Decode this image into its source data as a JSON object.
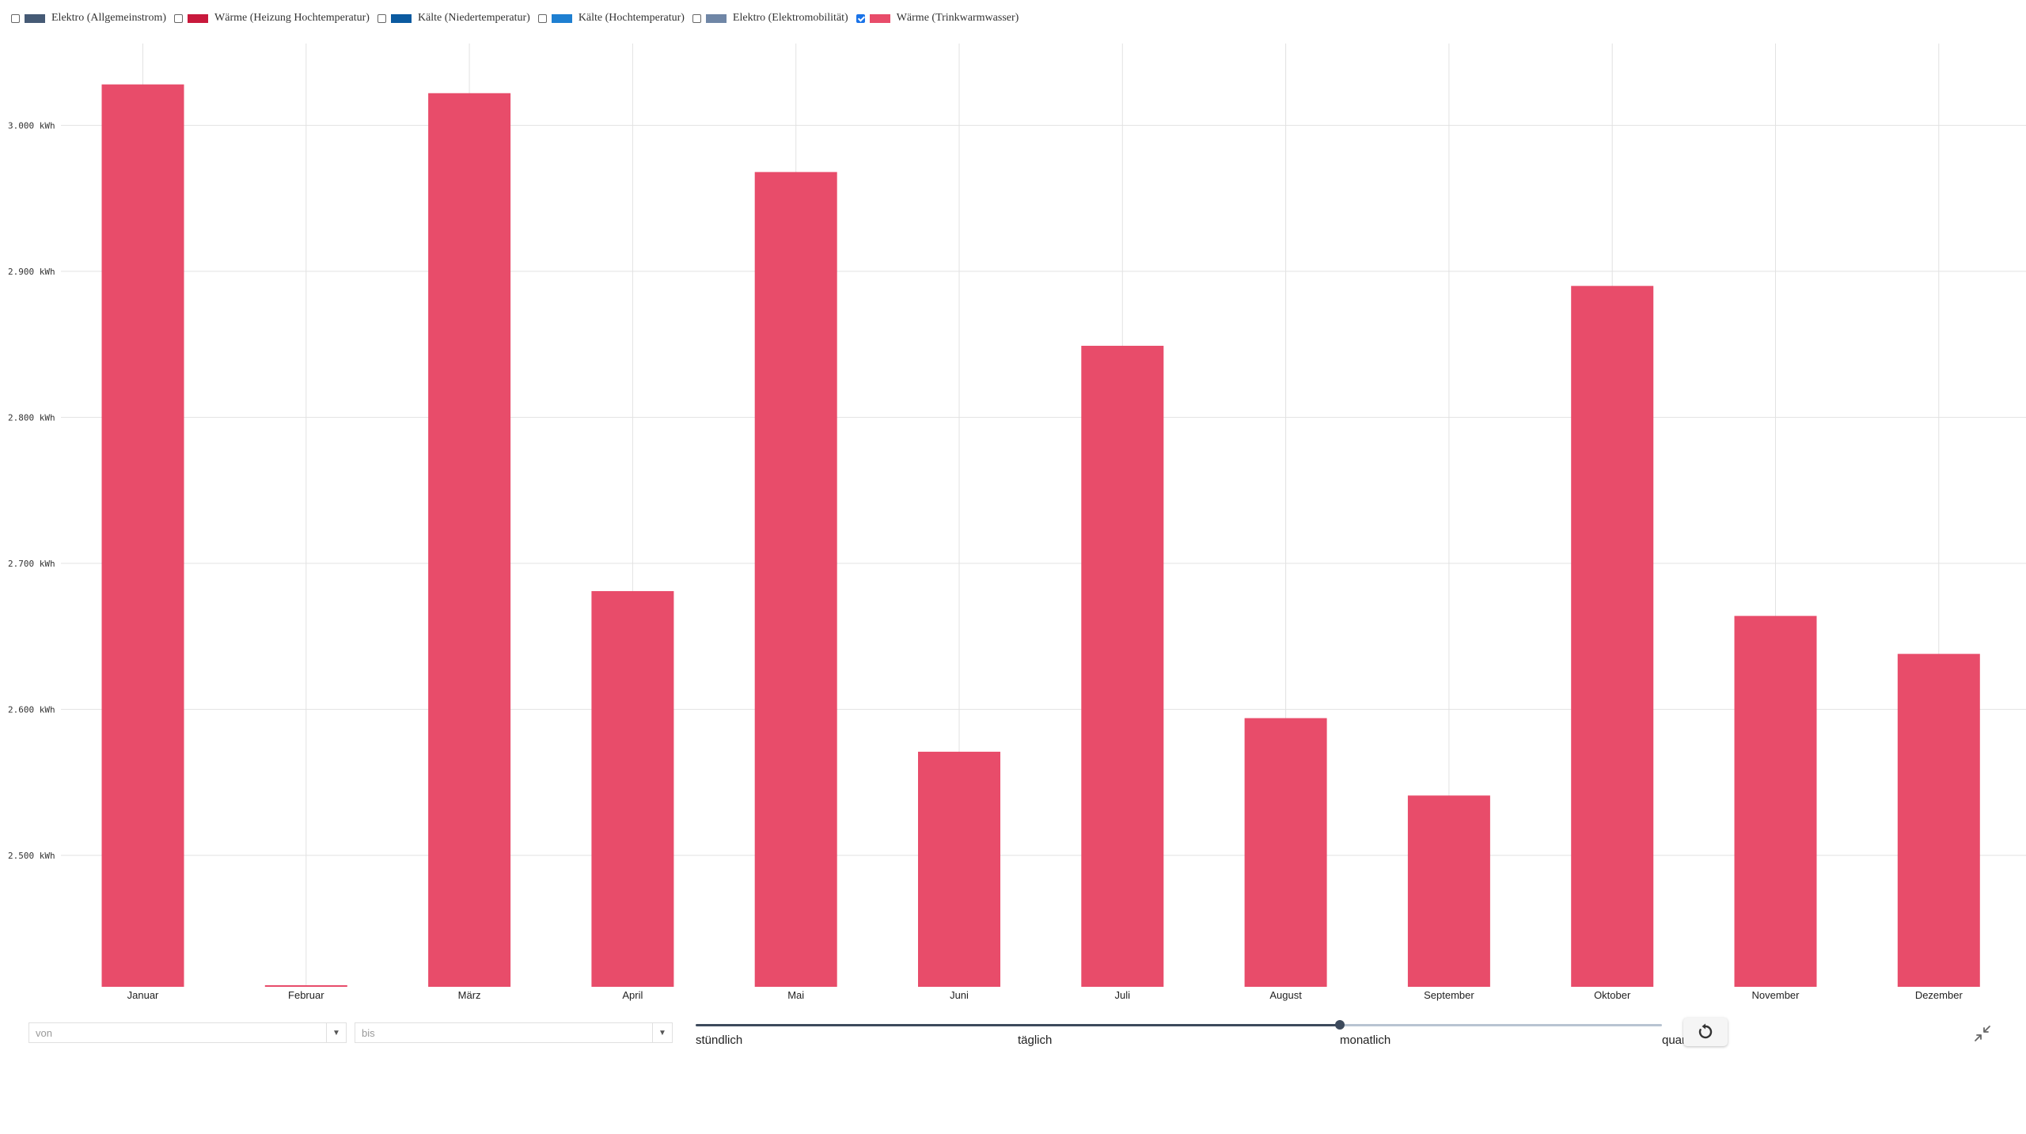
{
  "legend": [
    {
      "label": "Elektro (Allgemeinstrom)",
      "color": "#455a75",
      "checked": false
    },
    {
      "label": "Wärme (Heizung Hochtemperatur)",
      "color": "#c8193c",
      "checked": false
    },
    {
      "label": "Kälte (Niedertemperatur)",
      "color": "#0b5aa0",
      "checked": false
    },
    {
      "label": "Kälte (Hochtemperatur)",
      "color": "#1e7fd1",
      "checked": false
    },
    {
      "label": "Elektro (Elektromobilität)",
      "color": "#6f86a6",
      "checked": false
    },
    {
      "label": "Wärme (Trinkwarmwasser)",
      "color": "#e84c6a",
      "checked": true
    }
  ],
  "chart_data": {
    "type": "bar",
    "categories": [
      "Januar",
      "Februar",
      "März",
      "April",
      "Mai",
      "Juni",
      "Juli",
      "August",
      "September",
      "Oktober",
      "November",
      "Dezember"
    ],
    "series": [
      {
        "name": "Wärme (Trinkwarmwasser)",
        "color": "#e84c6a",
        "values": [
          3028,
          2410,
          3022,
          2681,
          2968,
          2571,
          2849,
          2594,
          2541,
          2890,
          2664,
          2638
        ]
      }
    ],
    "ylim": [
      2410,
      3056
    ],
    "yticks": [
      2500,
      2600,
      2700,
      2800,
      2900,
      3000
    ],
    "ytick_labels": [
      "2.500 kWh",
      "2.600 kWh",
      "2.700 kWh",
      "2.800 kWh",
      "2.900 kWh",
      "3.000 kWh"
    ],
    "grid": true
  },
  "controls": {
    "from_placeholder": "von",
    "to_placeholder": "bis",
    "resolution_options": [
      "stündlich",
      "täglich",
      "monatlich",
      "quar"
    ],
    "resolution_selected": "monatlich",
    "active_color": "#3d4a5c",
    "inactive_color": "#b8c4d2",
    "dropdown_arrow": "▼",
    "reset_icon": "reset-icon",
    "collapse_icon": "collapse-icon"
  }
}
